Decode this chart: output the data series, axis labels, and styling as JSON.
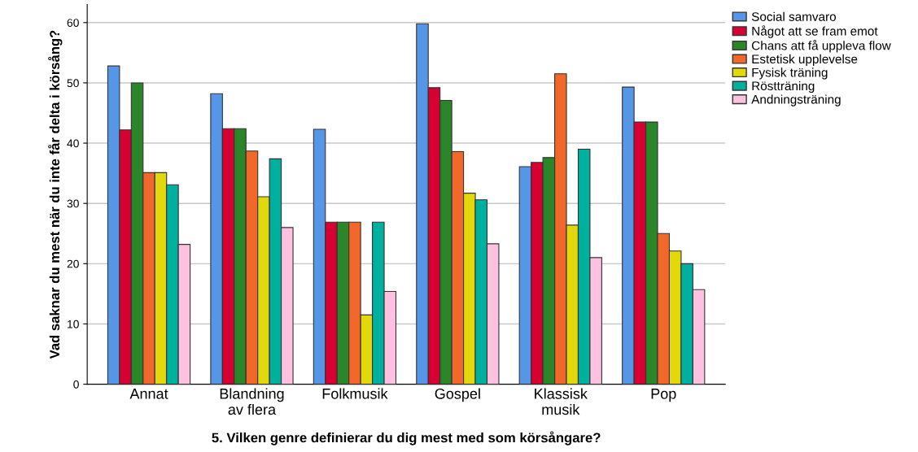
{
  "chart_data": {
    "type": "bar",
    "xlabel": "5. Vilken genre definierar du dig mest med som körsångare?",
    "ylabel": "Vad saknar du mest när du inte får delta i körsång?",
    "categories": [
      "Annat",
      "Blandning\nav flera",
      "Folkmusik",
      "Gospel",
      "Klassisk\nmusik",
      "Pop"
    ],
    "series": [
      {
        "name": "Social samvaro",
        "color": "#5596e6",
        "values": [
          52.8,
          48.2,
          42.3,
          59.8,
          36.1,
          49.3
        ]
      },
      {
        "name": "Något att se fram emot",
        "color": "#d60032",
        "values": [
          42.2,
          42.4,
          26.9,
          49.2,
          36.8,
          43.5
        ]
      },
      {
        "name": "Chans att få uppleva flow",
        "color": "#2a8628",
        "values": [
          50,
          42.4,
          26.9,
          47.1,
          37.6,
          43.5
        ]
      },
      {
        "name": "Estetisk upplevelse",
        "color": "#f2682a",
        "values": [
          35.1,
          38.7,
          26.9,
          38.6,
          51.5,
          25.0
        ]
      },
      {
        "name": "Fysisk träning",
        "color": "#e2d80c",
        "values": [
          35.1,
          31.1,
          11.5,
          31.7,
          26.4,
          22.1
        ]
      },
      {
        "name": "Röstträning",
        "color": "#00b09e",
        "values": [
          33.1,
          37.4,
          26.9,
          30.6,
          39.0,
          20.0
        ]
      },
      {
        "name": "Andningsträning",
        "color": "#fec1e0",
        "values": [
          23.2,
          26.0,
          15.4,
          23.3,
          21.0,
          15.7
        ]
      }
    ],
    "ylim": [
      0,
      63
    ],
    "yticks": [
      0,
      10,
      20,
      30,
      40,
      50,
      60
    ],
    "grid": "y",
    "legend": "top right"
  }
}
